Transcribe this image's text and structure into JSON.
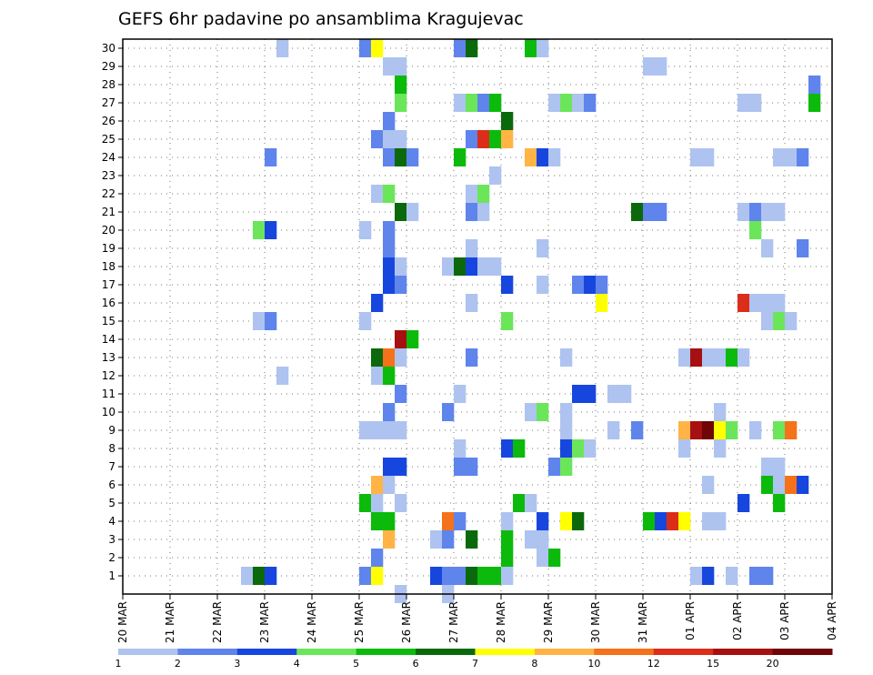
{
  "chart_data": {
    "type": "heatmap",
    "title": "GEFS 6hr padavine po ansamblima Kragujevac",
    "xlabel": "",
    "ylabel": "",
    "x_ticks": [
      "20 MAR",
      "21 MAR",
      "22 MAR",
      "23 MAR",
      "24 MAR",
      "25 MAR",
      "26 MAR",
      "27 MAR",
      "28 MAR",
      "29 MAR",
      "30 MAR",
      "31 MAR",
      "01 APR",
      "02 APR",
      "03 APR",
      "04 APR"
    ],
    "x_range_days": [
      0,
      15
    ],
    "steps_per_day": 4,
    "y_ticks": [
      "1",
      "2",
      "3",
      "4",
      "5",
      "6",
      "7",
      "8",
      "9",
      "10",
      "11",
      "12",
      "13",
      "14",
      "15",
      "16",
      "17",
      "18",
      "19",
      "20",
      "21",
      "22",
      "23",
      "24",
      "25",
      "26",
      "27",
      "28",
      "29",
      "30"
    ],
    "y_range": [
      0,
      30
    ],
    "grid": true,
    "legend": {
      "placement": "bottom",
      "thresholds": [
        "1",
        "2",
        "3",
        "4",
        "5",
        "6",
        "7",
        "8",
        "10",
        "12",
        "15",
        "20"
      ],
      "colors": [
        "#aec3ef",
        "#5f84ec",
        "#1746de",
        "#6be65a",
        "#0cba0c",
        "#0b690b",
        "#ffff00",
        "#ffb445",
        "#f5711a",
        "#dc2d18",
        "#a61010",
        "#6f0505"
      ]
    },
    "cells": [
      [
        22.5,
        1,
        0
      ],
      [
        22.75,
        1,
        5
      ],
      [
        23.0,
        1,
        2
      ],
      [
        25.0,
        1,
        1
      ],
      [
        25.25,
        1,
        6
      ],
      [
        26.5,
        1,
        2
      ],
      [
        26.75,
        1,
        1
      ],
      [
        27.0,
        1,
        1
      ],
      [
        27.25,
        1,
        5
      ],
      [
        27.5,
        1,
        4
      ],
      [
        27.75,
        1,
        4
      ],
      [
        28.0,
        1,
        0
      ],
      [
        32.0,
        1,
        0
      ],
      [
        32.25,
        1,
        2
      ],
      [
        32.75,
        1,
        0
      ],
      [
        33.25,
        1,
        1
      ],
      [
        33.5,
        1,
        1
      ],
      [
        25.25,
        2,
        1
      ],
      [
        28.0,
        2,
        4
      ],
      [
        28.75,
        2,
        0
      ],
      [
        29.0,
        2,
        4
      ],
      [
        25.5,
        3,
        7
      ],
      [
        26.5,
        3,
        0
      ],
      [
        26.75,
        3,
        1
      ],
      [
        27.25,
        3,
        5
      ],
      [
        28.0,
        3,
        4
      ],
      [
        28.5,
        3,
        0
      ],
      [
        28.75,
        3,
        0
      ],
      [
        25.25,
        4,
        4
      ],
      [
        25.5,
        4,
        4
      ],
      [
        26.75,
        4,
        8
      ],
      [
        27.0,
        4,
        1
      ],
      [
        28.0,
        4,
        0
      ],
      [
        28.75,
        4,
        2
      ],
      [
        29.25,
        4,
        6
      ],
      [
        29.5,
        4,
        5
      ],
      [
        31.0,
        4,
        4
      ],
      [
        31.25,
        4,
        2
      ],
      [
        31.5,
        4,
        9
      ],
      [
        31.75,
        4,
        6
      ],
      [
        32.25,
        4,
        0
      ],
      [
        32.5,
        4,
        0
      ],
      [
        25.0,
        5,
        4
      ],
      [
        25.25,
        5,
        0
      ],
      [
        25.75,
        5,
        0
      ],
      [
        28.25,
        5,
        4
      ],
      [
        28.5,
        5,
        0
      ],
      [
        33.0,
        5,
        2
      ],
      [
        33.75,
        5,
        4
      ],
      [
        25.25,
        6,
        7
      ],
      [
        25.5,
        6,
        0
      ],
      [
        32.25,
        6,
        0
      ],
      [
        33.5,
        6,
        4
      ],
      [
        33.75,
        6,
        0
      ],
      [
        34.0,
        6,
        8
      ],
      [
        34.25,
        6,
        2
      ],
      [
        25.5,
        7,
        2
      ],
      [
        25.75,
        7,
        2
      ],
      [
        27.0,
        7,
        1
      ],
      [
        27.25,
        7,
        1
      ],
      [
        29.0,
        7,
        1
      ],
      [
        29.25,
        7,
        3
      ],
      [
        33.5,
        7,
        0
      ],
      [
        33.75,
        7,
        0
      ],
      [
        27.0,
        8,
        0
      ],
      [
        28.0,
        8,
        2
      ],
      [
        28.25,
        8,
        4
      ],
      [
        29.25,
        8,
        2
      ],
      [
        29.5,
        8,
        3
      ],
      [
        29.75,
        8,
        0
      ],
      [
        31.75,
        8,
        0
      ],
      [
        32.5,
        8,
        0
      ],
      [
        25.0,
        9,
        0
      ],
      [
        25.25,
        9,
        0
      ],
      [
        25.5,
        9,
        0
      ],
      [
        25.75,
        9,
        0
      ],
      [
        29.25,
        9,
        0
      ],
      [
        30.25,
        9,
        0
      ],
      [
        30.75,
        9,
        1
      ],
      [
        31.75,
        9,
        7
      ],
      [
        32.0,
        9,
        10
      ],
      [
        32.25,
        9,
        11
      ],
      [
        32.5,
        9,
        6
      ],
      [
        32.75,
        9,
        3
      ],
      [
        33.25,
        9,
        0
      ],
      [
        33.75,
        9,
        3
      ],
      [
        34.0,
        9,
        8
      ],
      [
        25.5,
        10,
        1
      ],
      [
        26.75,
        10,
        1
      ],
      [
        28.5,
        10,
        0
      ],
      [
        28.75,
        10,
        3
      ],
      [
        29.25,
        10,
        0
      ],
      [
        32.5,
        10,
        0
      ],
      [
        25.75,
        11,
        1
      ],
      [
        27.0,
        11,
        0
      ],
      [
        29.5,
        11,
        2
      ],
      [
        29.75,
        11,
        2
      ],
      [
        30.25,
        11,
        0
      ],
      [
        30.5,
        11,
        0
      ],
      [
        25.25,
        12,
        0
      ],
      [
        23.25,
        12,
        0
      ],
      [
        25.5,
        12,
        4
      ],
      [
        25.25,
        13,
        5
      ],
      [
        25.5,
        13,
        8
      ],
      [
        25.75,
        13,
        0
      ],
      [
        27.25,
        13,
        1
      ],
      [
        29.25,
        13,
        0
      ],
      [
        31.75,
        13,
        0
      ],
      [
        32.0,
        13,
        10
      ],
      [
        32.25,
        13,
        0
      ],
      [
        32.5,
        13,
        0
      ],
      [
        32.75,
        13,
        4
      ],
      [
        33.0,
        13,
        0
      ],
      [
        25.75,
        14,
        10
      ],
      [
        26.0,
        14,
        4
      ],
      [
        22.75,
        15,
        0
      ],
      [
        23.0,
        15,
        1
      ],
      [
        25.0,
        15,
        0
      ],
      [
        28.0,
        15,
        3
      ],
      [
        33.5,
        15,
        0
      ],
      [
        33.75,
        15,
        3
      ],
      [
        34.0,
        15,
        0
      ],
      [
        25.25,
        16,
        2
      ],
      [
        27.25,
        16,
        0
      ],
      [
        30.0,
        16,
        6
      ],
      [
        33.0,
        16,
        9
      ],
      [
        33.25,
        16,
        0
      ],
      [
        33.5,
        16,
        0
      ],
      [
        33.75,
        16,
        0
      ],
      [
        25.5,
        17,
        2
      ],
      [
        25.75,
        17,
        1
      ],
      [
        28.0,
        17,
        2
      ],
      [
        28.75,
        17,
        0
      ],
      [
        29.5,
        17,
        1
      ],
      [
        29.75,
        17,
        2
      ],
      [
        30.0,
        17,
        1
      ],
      [
        25.5,
        18,
        2
      ],
      [
        25.75,
        18,
        0
      ],
      [
        26.75,
        18,
        0
      ],
      [
        27.0,
        18,
        5
      ],
      [
        27.25,
        18,
        2
      ],
      [
        27.5,
        18,
        0
      ],
      [
        27.75,
        18,
        0
      ],
      [
        25.5,
        19,
        1
      ],
      [
        27.25,
        19,
        0
      ],
      [
        28.75,
        19,
        0
      ],
      [
        33.5,
        19,
        0
      ],
      [
        34.25,
        19,
        1
      ],
      [
        22.75,
        20,
        3
      ],
      [
        23.0,
        20,
        2
      ],
      [
        25.0,
        20,
        0
      ],
      [
        25.5,
        20,
        1
      ],
      [
        33.25,
        20,
        3
      ],
      [
        25.75,
        21,
        5
      ],
      [
        26.0,
        21,
        0
      ],
      [
        27.25,
        21,
        1
      ],
      [
        27.5,
        21,
        0
      ],
      [
        30.75,
        21,
        5
      ],
      [
        31.0,
        21,
        1
      ],
      [
        31.25,
        21,
        1
      ],
      [
        33.0,
        21,
        0
      ],
      [
        33.25,
        21,
        1
      ],
      [
        33.5,
        21,
        0
      ],
      [
        33.75,
        21,
        0
      ],
      [
        25.25,
        22,
        0
      ],
      [
        25.5,
        22,
        3
      ],
      [
        27.25,
        22,
        0
      ],
      [
        27.5,
        22,
        3
      ],
      [
        27.75,
        23,
        0
      ],
      [
        23.0,
        24,
        1
      ],
      [
        25.5,
        24,
        1
      ],
      [
        25.75,
        24,
        5
      ],
      [
        26.0,
        24,
        1
      ],
      [
        27.0,
        24,
        4
      ],
      [
        28.5,
        24,
        7
      ],
      [
        28.75,
        24,
        2
      ],
      [
        29.0,
        24,
        0
      ],
      [
        32.0,
        24,
        0
      ],
      [
        32.25,
        24,
        0
      ],
      [
        33.75,
        24,
        0
      ],
      [
        34.0,
        24,
        0
      ],
      [
        34.25,
        24,
        1
      ],
      [
        25.25,
        25,
        1
      ],
      [
        25.5,
        25,
        0
      ],
      [
        25.75,
        25,
        0
      ],
      [
        27.25,
        25,
        1
      ],
      [
        27.5,
        25,
        9
      ],
      [
        27.75,
        25,
        4
      ],
      [
        28.0,
        25,
        7
      ],
      [
        25.5,
        26,
        1
      ],
      [
        28.0,
        26,
        5
      ],
      [
        25.75,
        27,
        3
      ],
      [
        27.0,
        27,
        0
      ],
      [
        27.25,
        27,
        3
      ],
      [
        27.5,
        27,
        1
      ],
      [
        27.75,
        27,
        4
      ],
      [
        29.0,
        27,
        0
      ],
      [
        29.25,
        27,
        3
      ],
      [
        29.5,
        27,
        0
      ],
      [
        29.75,
        27,
        1
      ],
      [
        33.0,
        27,
        0
      ],
      [
        33.25,
        27,
        0
      ],
      [
        34.5,
        27,
        4
      ],
      [
        25.75,
        28,
        4
      ],
      [
        34.5,
        28,
        1
      ],
      [
        25.5,
        29,
        0
      ],
      [
        25.75,
        29,
        0
      ],
      [
        31.0,
        29,
        0
      ],
      [
        31.25,
        29,
        0
      ],
      [
        23.25,
        30,
        0
      ],
      [
        25.0,
        30,
        1
      ],
      [
        25.25,
        30,
        6
      ],
      [
        27.0,
        30,
        1
      ],
      [
        27.25,
        30,
        5
      ],
      [
        28.5,
        30,
        4
      ],
      [
        28.75,
        30,
        0
      ],
      [
        25.75,
        0,
        0
      ],
      [
        26.75,
        0,
        0
      ]
    ]
  }
}
